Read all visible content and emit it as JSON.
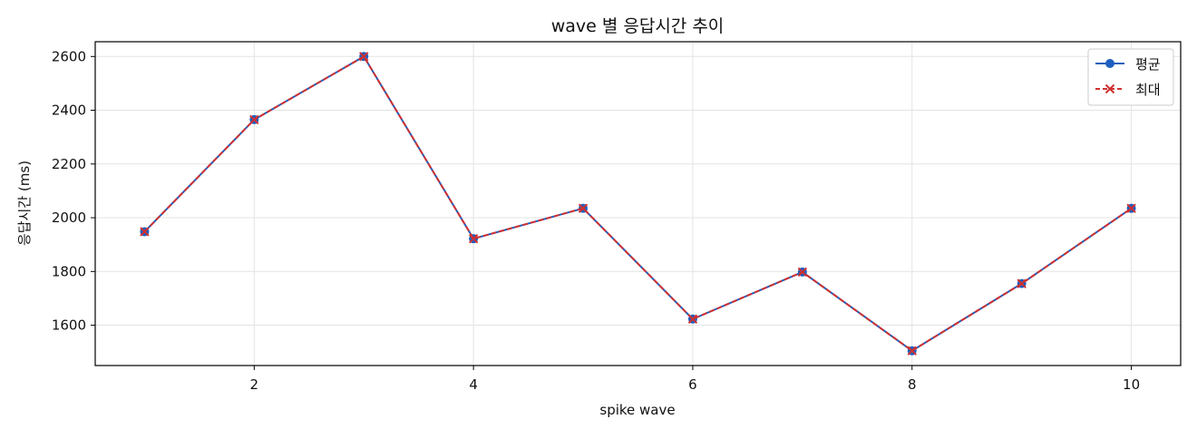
{
  "chart_data": {
    "type": "line",
    "title": "wave 별 응답시간 추이",
    "xlabel": "spike wave",
    "ylabel": "응답시간 (ms)",
    "x": [
      1,
      2,
      3,
      4,
      5,
      6,
      7,
      8,
      9,
      10
    ],
    "xticks": [
      2,
      4,
      6,
      8,
      10
    ],
    "yticks": [
      1600,
      1800,
      2000,
      2200,
      2400,
      2600
    ],
    "xlim": [
      0.55,
      10.45
    ],
    "ylim": [
      1450,
      2655
    ],
    "grid": true,
    "legend_position": "top-right",
    "series": [
      {
        "name": "평균",
        "values": [
          1948,
          2365,
          2600,
          1922,
          2035,
          1623,
          1798,
          1505,
          1755,
          2035
        ],
        "color": "#1f5fbf",
        "linestyle": "solid",
        "marker": "circle"
      },
      {
        "name": "최대",
        "values": [
          1948,
          2365,
          2600,
          1922,
          2035,
          1623,
          1798,
          1505,
          1755,
          2035
        ],
        "color": "#d03030",
        "linestyle": "dashed",
        "marker": "x"
      }
    ]
  }
}
